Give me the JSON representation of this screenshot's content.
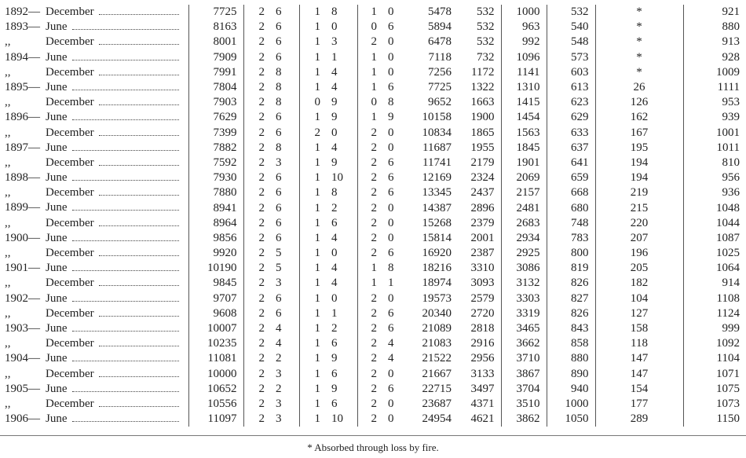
{
  "rows": [
    [
      "1892—",
      "December",
      7725,
      2,
      6,
      1,
      8,
      1,
      0,
      5478,
      532,
      1000,
      532,
      "*",
      921
    ],
    [
      "1893—",
      "June",
      8163,
      2,
      6,
      1,
      0,
      0,
      6,
      5894,
      532,
      963,
      540,
      "*",
      880
    ],
    [
      ",,",
      "December",
      8001,
      2,
      6,
      1,
      3,
      2,
      0,
      6478,
      532,
      992,
      548,
      "*",
      913
    ],
    [
      "1894—",
      "June",
      7909,
      2,
      6,
      1,
      1,
      1,
      0,
      7118,
      732,
      1096,
      573,
      "*",
      928
    ],
    [
      ",,",
      "December",
      7991,
      2,
      8,
      1,
      4,
      1,
      0,
      7256,
      1172,
      1141,
      603,
      "*",
      1009
    ],
    [
      "1895—",
      "June",
      7804,
      2,
      8,
      1,
      4,
      1,
      6,
      7725,
      1322,
      1310,
      613,
      26,
      1111
    ],
    [
      ",,",
      "December",
      7903,
      2,
      8,
      0,
      9,
      0,
      8,
      9652,
      1663,
      1415,
      623,
      126,
      953
    ],
    [
      "1896—",
      "June",
      7629,
      2,
      6,
      1,
      9,
      1,
      9,
      10158,
      1900,
      1454,
      629,
      162,
      939
    ],
    [
      ",,",
      "December",
      7399,
      2,
      6,
      2,
      0,
      2,
      0,
      10834,
      1865,
      1563,
      633,
      167,
      1001
    ],
    [
      "1897—",
      "June",
      7882,
      2,
      8,
      1,
      4,
      2,
      0,
      11687,
      1955,
      1845,
      637,
      195,
      1011
    ],
    [
      ",,",
      "December",
      7592,
      2,
      3,
      1,
      9,
      2,
      6,
      11741,
      2179,
      1901,
      641,
      194,
      810
    ],
    [
      "1898—",
      "June",
      7930,
      2,
      6,
      1,
      10,
      2,
      6,
      12169,
      2324,
      2069,
      659,
      194,
      956
    ],
    [
      ",,",
      "December",
      7880,
      2,
      6,
      1,
      8,
      2,
      6,
      13345,
      2437,
      2157,
      668,
      219,
      936
    ],
    [
      "1899—",
      "June",
      8941,
      2,
      6,
      1,
      2,
      2,
      0,
      14387,
      2896,
      2481,
      680,
      215,
      1048
    ],
    [
      ",,",
      "December",
      8964,
      2,
      6,
      1,
      6,
      2,
      0,
      15268,
      2379,
      2683,
      748,
      220,
      1044
    ],
    [
      "1900—",
      "June",
      9856,
      2,
      6,
      1,
      4,
      2,
      0,
      15814,
      2001,
      2934,
      783,
      207,
      1087
    ],
    [
      ",,",
      "December",
      9920,
      2,
      5,
      1,
      0,
      2,
      6,
      16920,
      2387,
      2925,
      800,
      196,
      1025
    ],
    [
      "1901—",
      "June",
      10190,
      2,
      5,
      1,
      4,
      1,
      8,
      18216,
      3310,
      3086,
      819,
      205,
      1064
    ],
    [
      ",,",
      "December",
      9845,
      2,
      3,
      1,
      4,
      1,
      1,
      18974,
      3093,
      3132,
      826,
      182,
      914
    ],
    [
      "1902—",
      "June",
      9707,
      2,
      6,
      1,
      0,
      2,
      0,
      19573,
      2579,
      3303,
      827,
      104,
      1108
    ],
    [
      ",,",
      "December",
      9608,
      2,
      6,
      1,
      1,
      2,
      6,
      20340,
      2720,
      3319,
      826,
      127,
      1124
    ],
    [
      "1903—",
      "June",
      10007,
      2,
      4,
      1,
      2,
      2,
      6,
      21089,
      2818,
      3465,
      843,
      158,
      999
    ],
    [
      ",,",
      "December",
      10235,
      2,
      4,
      1,
      6,
      2,
      4,
      21083,
      2916,
      3662,
      858,
      118,
      1092
    ],
    [
      "1904—",
      "June",
      11081,
      2,
      2,
      1,
      9,
      2,
      4,
      21522,
      2956,
      3710,
      880,
      147,
      1104
    ],
    [
      ",,",
      "December",
      10000,
      2,
      3,
      1,
      6,
      2,
      0,
      21667,
      3133,
      3867,
      890,
      147,
      1071
    ],
    [
      "1905—",
      "June",
      10652,
      2,
      2,
      1,
      9,
      2,
      6,
      22715,
      3497,
      3704,
      940,
      154,
      1075
    ],
    [
      ",,",
      "December",
      10556,
      2,
      3,
      1,
      6,
      2,
      0,
      23687,
      4371,
      3510,
      1000,
      177,
      1073
    ],
    [
      "1906—",
      "June",
      11097,
      2,
      3,
      1,
      10,
      2,
      0,
      24954,
      4621,
      3862,
      1050,
      289,
      1150
    ]
  ],
  "footnote": "* Absorbed through loss by fire."
}
